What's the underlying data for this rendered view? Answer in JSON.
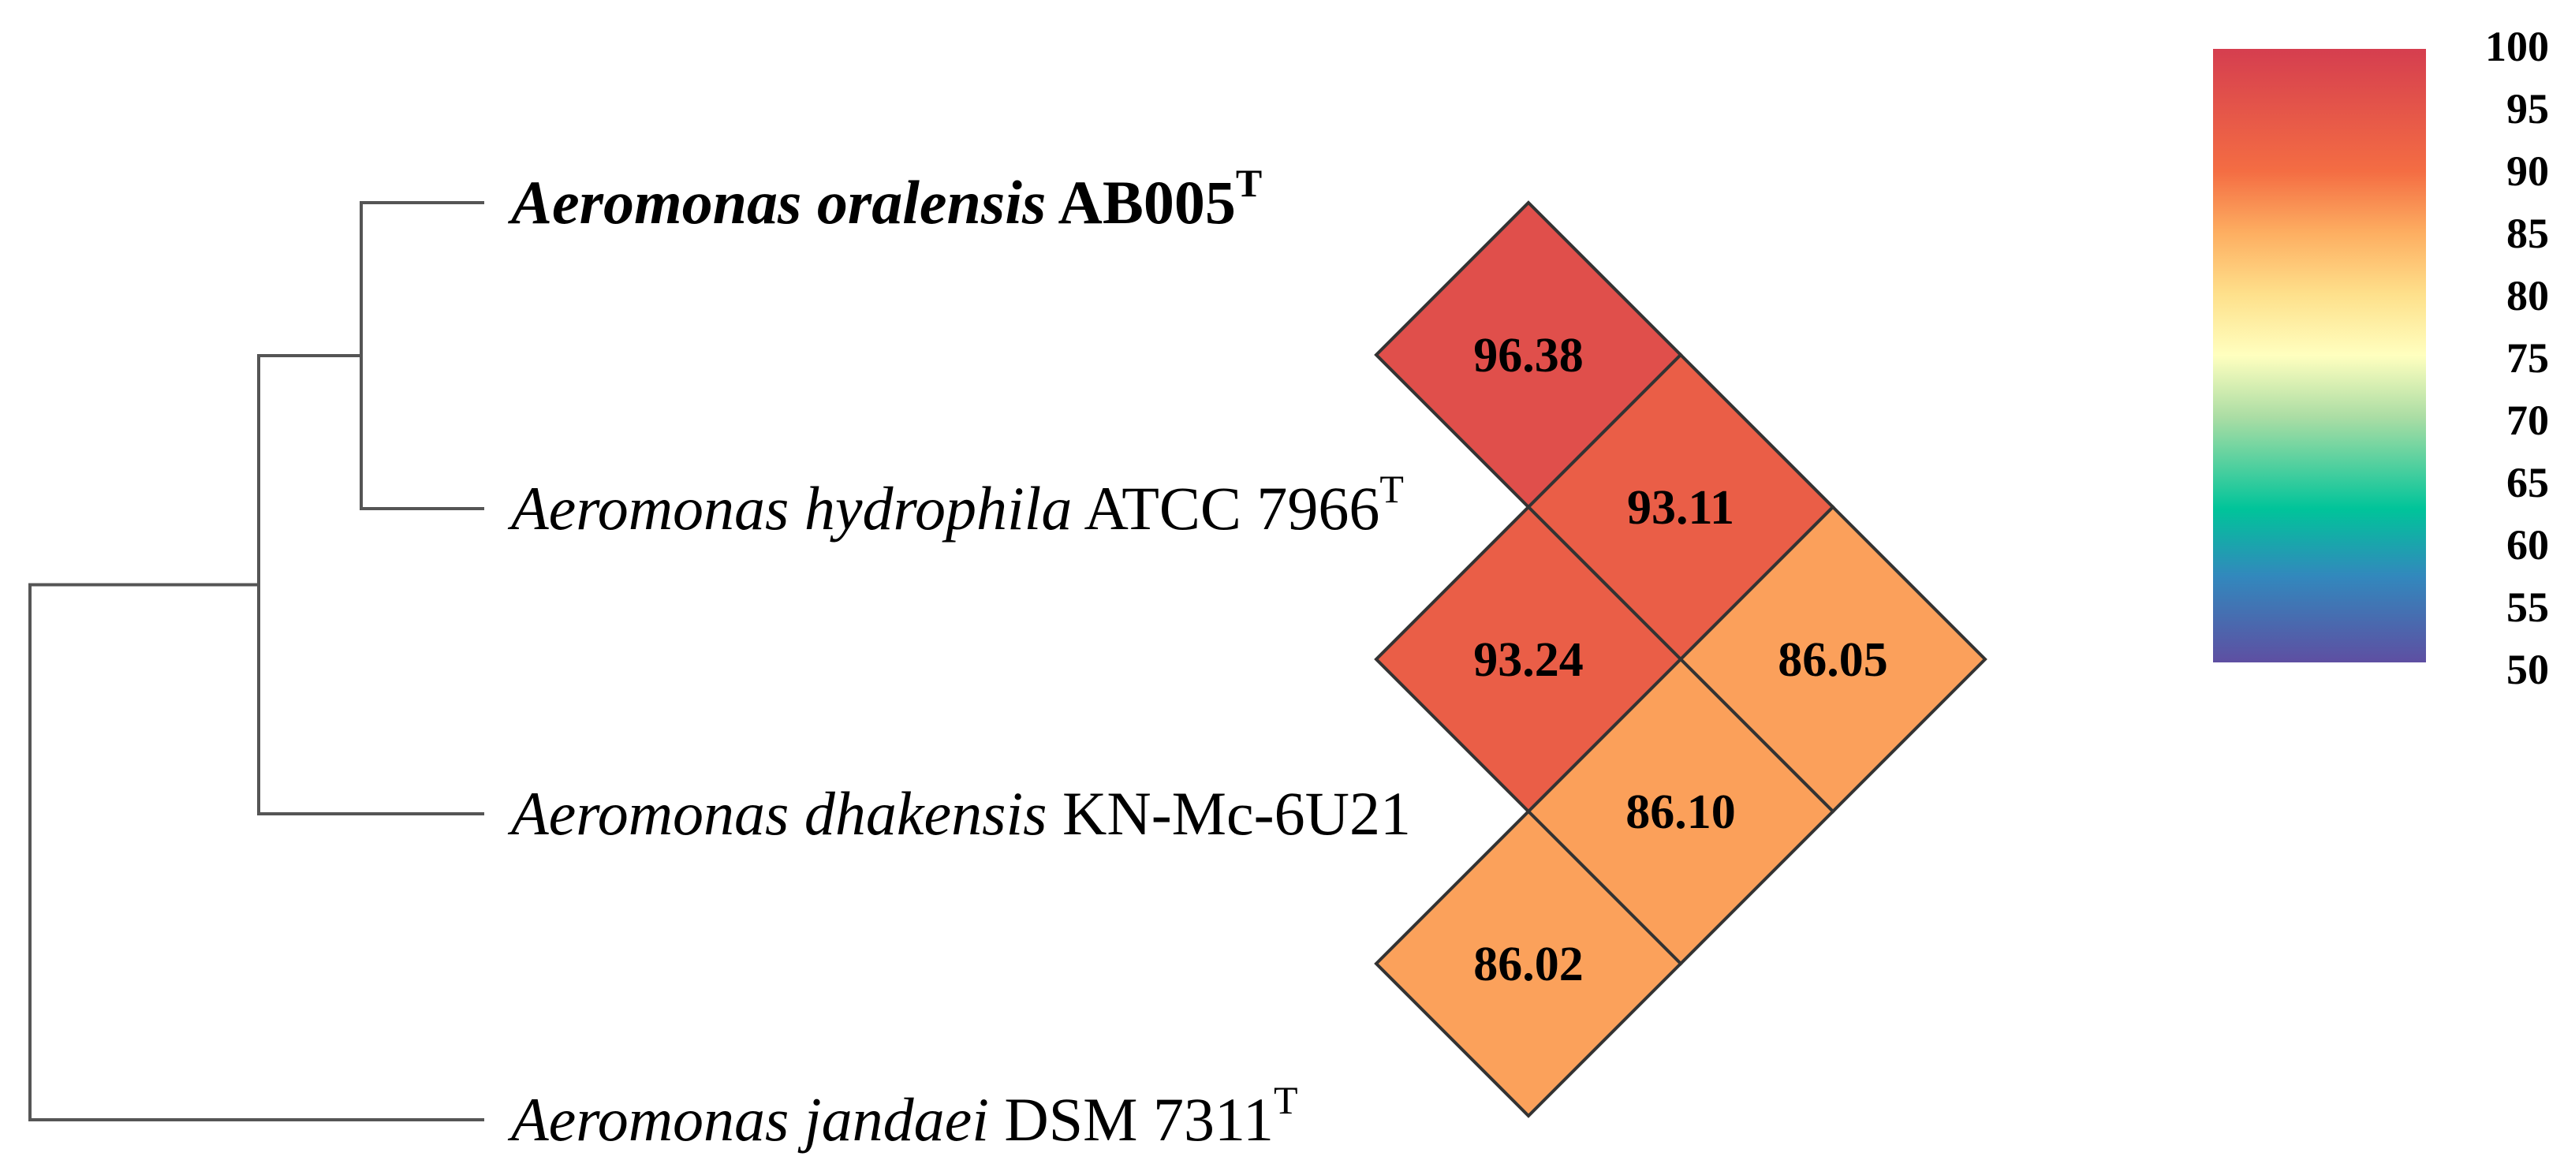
{
  "chart_data": {
    "type": "heatmap",
    "title": "",
    "taxa": [
      {
        "genus": "Aeromonas",
        "species": "oralensis",
        "strain": "AB005",
        "type_strain_mark": "T",
        "bold": true
      },
      {
        "genus": "Aeromonas",
        "species": "hydrophila",
        "strain": "ATCC 7966",
        "type_strain_mark": "T",
        "bold": false
      },
      {
        "genus": "Aeromonas",
        "species": "dhakensis",
        "strain": "KN-Mc-6U21",
        "type_strain_mark": "",
        "bold": false
      },
      {
        "genus": "Aeromonas",
        "species": "jandaei",
        "strain": "DSM 7311",
        "type_strain_mark": "T",
        "bold": false
      }
    ],
    "tree_topology": "(((Aeromonas oralensis AB005, Aeromonas hydrophila ATCC 7966), Aeromonas dhakensis KN-Mc-6U21), Aeromonas jandaei DSM 7311)",
    "pairwise_values": [
      {
        "taxon_a": 0,
        "taxon_b": 1,
        "value": 96.38
      },
      {
        "taxon_a": 0,
        "taxon_b": 2,
        "value": 93.11
      },
      {
        "taxon_a": 1,
        "taxon_b": 2,
        "value": 93.24
      },
      {
        "taxon_a": 0,
        "taxon_b": 3,
        "value": 86.05
      },
      {
        "taxon_a": 1,
        "taxon_b": 3,
        "value": 86.1
      },
      {
        "taxon_a": 2,
        "taxon_b": 3,
        "value": 86.02
      }
    ],
    "colorbar": {
      "min": 50,
      "max": 100,
      "ticks": [
        100,
        95,
        90,
        85,
        80,
        75,
        70,
        65,
        60,
        55,
        50
      ],
      "stops": [
        {
          "value": 100,
          "color": "#d53e4f"
        },
        {
          "value": 90,
          "color": "#f46d43"
        },
        {
          "value": 85,
          "color": "#fdae61"
        },
        {
          "value": 80,
          "color": "#fee08b"
        },
        {
          "value": 75,
          "color": "#ffffbf"
        },
        {
          "value": 70,
          "color": "#abdda4"
        },
        {
          "value": 62.5,
          "color": "#00c49a"
        },
        {
          "value": 57,
          "color": "#3288bd"
        },
        {
          "value": 50,
          "color": "#5e4fa2"
        }
      ]
    }
  }
}
